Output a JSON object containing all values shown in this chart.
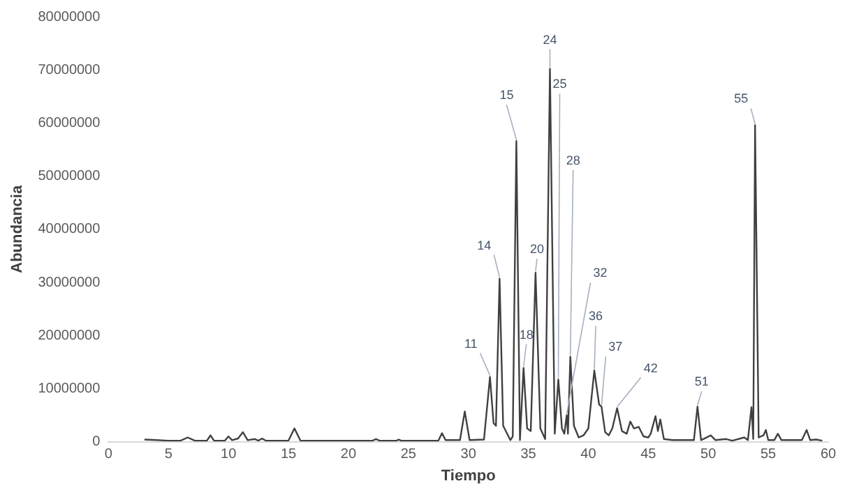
{
  "chart_data": {
    "type": "line",
    "xlabel": "Tiempo",
    "ylabel": "Abundancia",
    "xlim": [
      0,
      60
    ],
    "xticks": [
      0,
      5,
      10,
      15,
      20,
      25,
      30,
      35,
      40,
      45,
      50,
      55,
      60
    ],
    "ylim": [
      0,
      80000000
    ],
    "yticks": [
      0,
      10000000,
      20000000,
      30000000,
      40000000,
      50000000,
      60000000,
      70000000,
      80000000
    ],
    "grid": false,
    "legend": false,
    "marker": "none",
    "line_style": "solid",
    "series": [
      {
        "color": "#404040",
        "x": [
          3,
          4,
          5,
          6,
          6.6,
          7.2,
          8.2,
          8.5,
          8.8,
          9.7,
          10,
          10.3,
          10.8,
          11.2,
          11.6,
          12.2,
          12.5,
          12.8,
          13.1,
          15,
          15.5,
          16,
          22,
          22.3,
          22.6,
          24,
          24.2,
          24.4,
          27.5,
          27.8,
          28.1,
          29.3,
          29.7,
          30.1,
          31.3,
          31.8,
          32.1,
          32.3,
          32.6,
          32.9,
          33.5,
          33.7,
          34.0,
          34.3,
          34.6,
          34.9,
          35.2,
          35.6,
          36.0,
          36.4,
          36.8,
          37.2,
          37.5,
          37.8,
          38.0,
          38.2,
          38.3,
          38.5,
          38.8,
          39.2,
          39.6,
          40.0,
          40.5,
          40.9,
          41.1,
          41.4,
          41.7,
          42.0,
          42.4,
          42.8,
          43.2,
          43.5,
          43.8,
          44.2,
          44.6,
          45.0,
          45.2,
          45.6,
          45.8,
          46.0,
          46.3,
          47,
          48.8,
          49.1,
          49.4,
          50.2,
          50.6,
          51.5,
          52,
          53,
          53.3,
          53.6,
          53.75,
          53.9,
          54.2,
          54.6,
          54.8,
          55.0,
          55.5,
          55.8,
          56.1,
          57.8,
          58.2,
          58.5,
          59,
          59.5
        ],
        "values": [
          400000,
          300000,
          200000,
          200000,
          800000,
          200000,
          200000,
          1200000,
          200000,
          200000,
          1000000,
          300000,
          600000,
          1800000,
          300000,
          500000,
          200000,
          600000,
          200000,
          200000,
          2500000,
          200000,
          200000,
          500000,
          200000,
          200000,
          400000,
          200000,
          200000,
          1600000,
          300000,
          300000,
          5700000,
          300000,
          400000,
          12200000,
          3500000,
          3000000,
          30700000,
          3000000,
          300000,
          1000000,
          56600000,
          300000,
          13900000,
          2500000,
          2000000,
          31800000,
          2500000,
          500000,
          70200000,
          1500000,
          11700000,
          2500000,
          1500000,
          5000000,
          1500000,
          16000000,
          3000000,
          800000,
          1200000,
          2500000,
          13400000,
          7000000,
          6600000,
          1800000,
          1200000,
          2500000,
          6300000,
          2000000,
          1500000,
          3800000,
          2500000,
          2800000,
          1000000,
          800000,
          1500000,
          4800000,
          2000000,
          4200000,
          500000,
          300000,
          300000,
          6600000,
          300000,
          1200000,
          300000,
          500000,
          200000,
          800000,
          300000,
          6500000,
          500000,
          59600000,
          800000,
          1200000,
          2200000,
          300000,
          300000,
          1500000,
          300000,
          300000,
          2200000,
          300000,
          400000,
          200000
        ]
      }
    ],
    "annotations": [
      {
        "text": "11",
        "x": 31.8,
        "y": 12200000
      },
      {
        "text": "14",
        "x": 32.6,
        "y": 30700000
      },
      {
        "text": "15",
        "x": 34.0,
        "y": 56600000
      },
      {
        "text": "18",
        "x": 34.6,
        "y": 13900000
      },
      {
        "text": "20",
        "x": 35.6,
        "y": 31800000
      },
      {
        "text": "24",
        "x": 36.8,
        "y": 70200000
      },
      {
        "text": "25",
        "x": 37.5,
        "y": 11700000
      },
      {
        "text": "28",
        "x": 38.5,
        "y": 16000000
      },
      {
        "text": "32",
        "x": 38.2,
        "y": 5000000
      },
      {
        "text": "36",
        "x": 40.5,
        "y": 13400000
      },
      {
        "text": "37",
        "x": 41.1,
        "y": 6600000
      },
      {
        "text": "42",
        "x": 42.4,
        "y": 6300000
      },
      {
        "text": "51",
        "x": 49.1,
        "y": 6600000
      },
      {
        "text": "55",
        "x": 53.9,
        "y": 59600000
      }
    ]
  }
}
